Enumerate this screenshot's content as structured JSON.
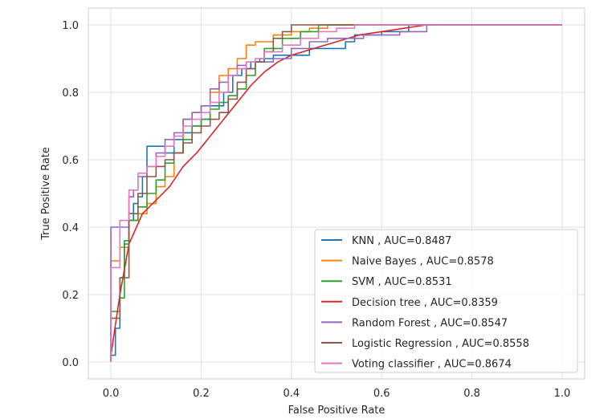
{
  "chart_data": {
    "type": "line",
    "title": "",
    "xlabel": "False Positive Rate",
    "ylabel": "True Positive Rate",
    "xlim": [
      -0.05,
      1.05
    ],
    "ylim": [
      -0.05,
      1.05
    ],
    "xticks": [
      "0.0",
      "0.2",
      "0.4",
      "0.6",
      "0.8",
      "1.0"
    ],
    "yticks": [
      "0.0",
      "0.2",
      "0.4",
      "0.6",
      "0.8",
      "1.0"
    ],
    "grid": true,
    "legend_position": "bottom-right",
    "series": [
      {
        "name": "KNN , AUC=0.8487",
        "color": "#1f77b4",
        "step": true,
        "x": [
          0,
          0.01,
          0.02,
          0.03,
          0.04,
          0.05,
          0.06,
          0.07,
          0.08,
          0.09,
          0.1,
          0.12,
          0.14,
          0.16,
          0.18,
          0.2,
          0.22,
          0.25,
          0.27,
          0.29,
          0.31,
          0.33,
          0.36,
          0.4,
          0.44,
          0.52,
          0.54,
          0.6,
          0.66,
          0.72,
          1.0
        ],
        "y": [
          0,
          0.02,
          0.1,
          0.25,
          0.35,
          0.42,
          0.47,
          0.49,
          0.55,
          0.64,
          0.64,
          0.64,
          0.62,
          0.66,
          0.68,
          0.7,
          0.72,
          0.76,
          0.8,
          0.85,
          0.87,
          0.89,
          0.9,
          0.91,
          0.91,
          0.93,
          0.95,
          0.97,
          0.98,
          1.0,
          1.0
        ]
      },
      {
        "name": "Naive Bayes , AUC=0.8578",
        "color": "#ff7f0e",
        "step": true,
        "x": [
          0,
          0.02,
          0.04,
          0.06,
          0.08,
          0.1,
          0.12,
          0.14,
          0.16,
          0.18,
          0.2,
          0.22,
          0.24,
          0.26,
          0.28,
          0.3,
          0.32,
          0.36,
          0.4,
          0.44,
          0.48,
          0.52,
          1.0
        ],
        "y": [
          0,
          0.3,
          0.34,
          0.42,
          0.44,
          0.47,
          0.52,
          0.55,
          0.62,
          0.72,
          0.74,
          0.76,
          0.8,
          0.85,
          0.87,
          0.9,
          0.94,
          0.95,
          0.97,
          0.98,
          0.99,
          1.0,
          1.0
        ]
      },
      {
        "name": "SVM , AUC=0.8531",
        "color": "#2ca02c",
        "step": true,
        "x": [
          0,
          0.02,
          0.03,
          0.04,
          0.06,
          0.08,
          0.1,
          0.12,
          0.14,
          0.16,
          0.18,
          0.2,
          0.22,
          0.24,
          0.26,
          0.28,
          0.3,
          0.32,
          0.34,
          0.38,
          0.42,
          0.46,
          0.5,
          1.0
        ],
        "y": [
          0,
          0.15,
          0.19,
          0.36,
          0.42,
          0.46,
          0.5,
          0.54,
          0.59,
          0.62,
          0.66,
          0.7,
          0.72,
          0.75,
          0.77,
          0.79,
          0.81,
          0.85,
          0.89,
          0.93,
          0.96,
          0.98,
          1.0,
          1.0
        ]
      },
      {
        "name": "Decision tree , AUC=0.8359",
        "color": "#d62728",
        "step": false,
        "x": [
          0,
          0.02,
          0.04,
          0.07,
          0.1,
          0.13,
          0.16,
          0.19,
          0.22,
          0.25,
          0.28,
          0.31,
          0.34,
          0.37,
          0.4,
          0.45,
          0.5,
          0.55,
          0.6,
          0.65,
          0.7,
          0.8,
          0.9,
          1.0
        ],
        "y": [
          0.02,
          0.2,
          0.35,
          0.44,
          0.48,
          0.52,
          0.58,
          0.62,
          0.67,
          0.72,
          0.77,
          0.82,
          0.86,
          0.89,
          0.91,
          0.93,
          0.95,
          0.97,
          0.98,
          0.99,
          1.0,
          1.0,
          1.0,
          1.0
        ]
      },
      {
        "name": "Random Forest , AUC=0.8547",
        "color": "#9467bd",
        "step": true,
        "x": [
          0,
          0.02,
          0.04,
          0.05,
          0.06,
          0.08,
          0.1,
          0.12,
          0.14,
          0.16,
          0.18,
          0.2,
          0.22,
          0.24,
          0.26,
          0.28,
          0.3,
          0.32,
          0.36,
          0.4,
          0.44,
          0.48,
          0.56,
          0.64,
          0.7,
          0.76,
          1.0
        ],
        "y": [
          0,
          0.4,
          0.4,
          0.49,
          0.51,
          0.55,
          0.58,
          0.62,
          0.66,
          0.68,
          0.72,
          0.74,
          0.76,
          0.81,
          0.83,
          0.85,
          0.88,
          0.89,
          0.89,
          0.9,
          0.93,
          0.95,
          0.96,
          0.97,
          0.98,
          1.0,
          1.0
        ]
      },
      {
        "name": "Logistic Regression , AUC=0.8558",
        "color": "#8c564b",
        "step": true,
        "x": [
          0,
          0.02,
          0.04,
          0.06,
          0.08,
          0.1,
          0.12,
          0.14,
          0.16,
          0.18,
          0.2,
          0.22,
          0.24,
          0.26,
          0.28,
          0.3,
          0.32,
          0.34,
          0.36,
          0.38,
          0.4,
          0.42,
          1.0
        ],
        "y": [
          0,
          0.13,
          0.25,
          0.44,
          0.5,
          0.55,
          0.58,
          0.6,
          0.62,
          0.65,
          0.68,
          0.7,
          0.72,
          0.74,
          0.78,
          0.83,
          0.87,
          0.89,
          0.92,
          0.96,
          0.98,
          1.0,
          1.0
        ]
      },
      {
        "name": "Voting classifier , AUC=0.8674",
        "color": "#e377c2",
        "step": true,
        "x": [
          0,
          0.02,
          0.04,
          0.06,
          0.08,
          0.1,
          0.12,
          0.14,
          0.16,
          0.18,
          0.2,
          0.22,
          0.24,
          0.26,
          0.28,
          0.3,
          0.32,
          0.34,
          0.38,
          0.42,
          0.46,
          0.5,
          0.54,
          0.56,
          1.0
        ],
        "y": [
          0,
          0.28,
          0.42,
          0.51,
          0.56,
          0.58,
          0.61,
          0.64,
          0.67,
          0.7,
          0.72,
          0.74,
          0.77,
          0.8,
          0.85,
          0.87,
          0.89,
          0.9,
          0.92,
          0.94,
          0.96,
          0.98,
          0.99,
          1.0,
          1.0
        ]
      }
    ]
  },
  "style": {
    "background": "#ffffff",
    "grid_color": "#e0e0e0",
    "spine_color": "#cccccc",
    "text_color": "#262626"
  }
}
